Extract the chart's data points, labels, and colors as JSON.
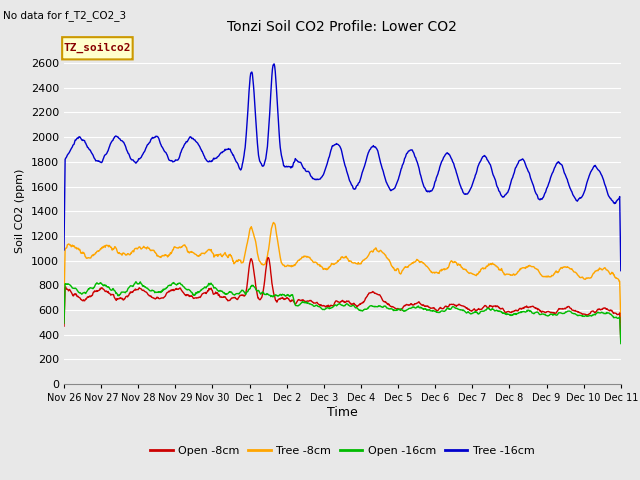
{
  "title": "Tonzi Soil CO2 Profile: Lower CO2",
  "subtitle": "No data for f_T2_CO2_3",
  "ylabel": "Soil CO2 (ppm)",
  "xlabel": "Time",
  "legend_label": "TZ_soilco2",
  "ylim": [
    0,
    2800
  ],
  "yticks": [
    0,
    200,
    400,
    600,
    800,
    1000,
    1200,
    1400,
    1600,
    1800,
    2000,
    2200,
    2400,
    2600
  ],
  "xtick_labels": [
    "Nov 26",
    "Nov 27",
    "Nov 28",
    "Nov 29",
    "Nov 30",
    "Dec 1",
    "Dec 2",
    "Dec 3",
    "Dec 4",
    "Dec 5",
    "Dec 6",
    "Dec 7",
    "Dec 8",
    "Dec 9",
    "Dec 10",
    "Dec 11"
  ],
  "bg_color": "#e8e8e8",
  "plot_bg_color": "#e8e8e8",
  "grid_color": "#ffffff",
  "colors": {
    "open_8cm": "#cc0000",
    "tree_8cm": "#ffa500",
    "open_16cm": "#00bb00",
    "tree_16cm": "#0000cc"
  },
  "legend_entries": [
    "Open -8cm",
    "Tree -8cm",
    "Open -16cm",
    "Tree -16cm"
  ]
}
